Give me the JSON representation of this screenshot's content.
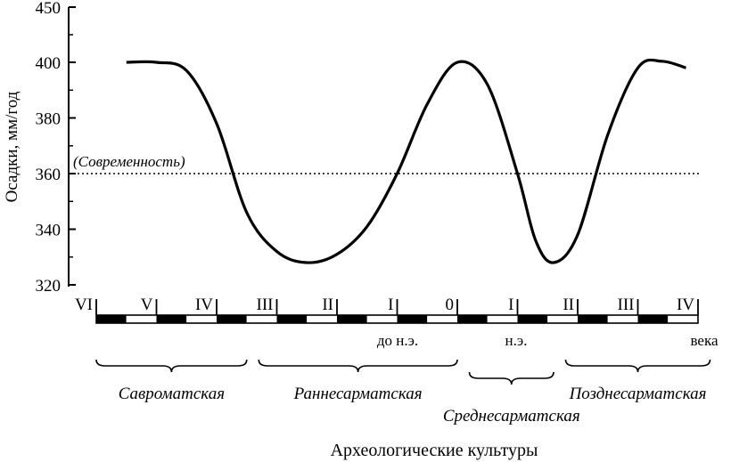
{
  "chart_data": {
    "type": "line",
    "ylabel": "Осадки, мм/год",
    "ylim": [
      320,
      450
    ],
    "yticks": [
      320,
      340,
      360,
      380,
      400,
      450
    ],
    "reference_line": {
      "y": 360,
      "label": "(Современность)",
      "style": "dotted"
    },
    "century_labels": [
      "VI",
      "V",
      "IV",
      "III",
      "II",
      "I",
      "0",
      "I",
      "II",
      "III",
      "IV"
    ],
    "era_labels": {
      "bc": "до н.э.",
      "ad": "н.э.",
      "unit": "века"
    },
    "series": [
      {
        "x": [
          -5.5,
          -5.0,
          -4.5,
          -4.0,
          -3.5,
          -3.0,
          -2.5,
          -2.0,
          -1.5,
          -1.0,
          -0.5,
          0.0,
          0.5,
          1.0,
          1.3,
          1.6,
          2.0,
          2.5,
          3.0,
          3.4,
          3.8
        ],
        "values": [
          400,
          400,
          397,
          378,
          346,
          332,
          328,
          331,
          341,
          360,
          385,
          400,
          392,
          360,
          336,
          328,
          338,
          374,
          398,
          401,
          398
        ]
      }
    ],
    "cultures": [
      {
        "name": "Савроматская",
        "from": -6.0,
        "to": -3.5
      },
      {
        "name": "Раннесарматская",
        "from": -3.3,
        "to": 0.0
      },
      {
        "name": "Среднесарматская",
        "from": 0.2,
        "to": 1.6
      },
      {
        "name": "Позднесарматская",
        "from": 1.8,
        "to": 4.2
      }
    ]
  },
  "footer": "Археологические культуры"
}
